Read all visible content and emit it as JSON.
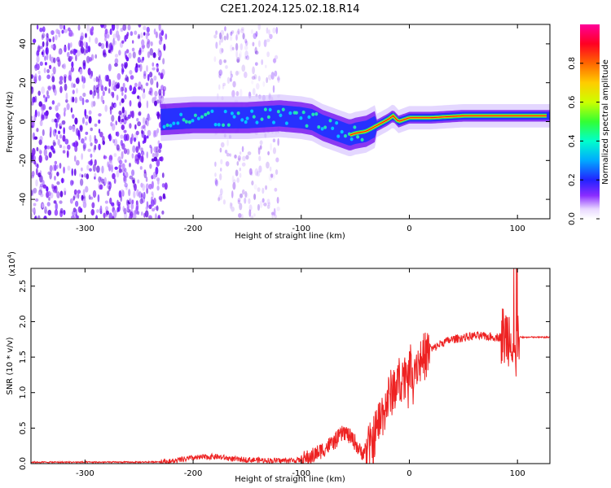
{
  "title": "C2E1.2024.125.02.18.R14",
  "chart_data": [
    {
      "type": "heatmap",
      "xlabel": "Height of straight line (km)",
      "ylabel": "Frequency (Hz)",
      "xlim": [
        -350,
        130
      ],
      "ylim": [
        -50,
        50
      ],
      "xticks": [
        -300,
        -200,
        -100,
        0,
        100
      ],
      "yticks": [
        -40,
        -20,
        0,
        20,
        40
      ],
      "colorbar": {
        "label": "Normalized spectral amplitude",
        "range": [
          0,
          1
        ],
        "ticks": [
          "0.0",
          "0.2",
          "0.4",
          "0.6",
          "0.8"
        ]
      },
      "ridge": {
        "x": [
          -230,
          -200,
          -150,
          -120,
          -100,
          -90,
          -80,
          -70,
          -60,
          -55,
          -50,
          -40,
          -30,
          -20,
          -15,
          -10,
          -5,
          0,
          20,
          50,
          80,
          95,
          100,
          130
        ],
        "y": [
          1,
          2,
          2,
          3,
          2,
          1,
          -2,
          -4,
          -6,
          -7,
          -6,
          -5,
          -2,
          1,
          3,
          0,
          1,
          2,
          2,
          3,
          3,
          3,
          3,
          3
        ]
      },
      "noise_regions": [
        [
          -350,
          -225
        ],
        [
          -180,
          -120
        ]
      ]
    },
    {
      "type": "line",
      "xlabel": "Height of straight line (km)",
      "ylabel": "SNR (10 * v/v)",
      "exponent_label": "(x10",
      "exponent_power": "4",
      "exponent_close": ")",
      "xlim": [
        -350,
        130
      ],
      "ylim": [
        0,
        2.75
      ],
      "xticks": [
        -300,
        -200,
        -100,
        0,
        100
      ],
      "yticks": [
        "0.0",
        "0.5",
        "1.0",
        "1.5",
        "2.0",
        "2.5"
      ],
      "series": [
        {
          "color": "#ee2222",
          "x": [
            -350,
            -300,
            -250,
            -220,
            -200,
            -180,
            -160,
            -140,
            -120,
            -100,
            -90,
            -80,
            -70,
            -60,
            -50,
            -45,
            -40,
            -35,
            -30,
            -25,
            -20,
            -15,
            -10,
            -5,
            0,
            10,
            20,
            30,
            40,
            60,
            80,
            90,
            95,
            98,
            100,
            105,
            130
          ],
          "y": [
            0.02,
            0.02,
            0.02,
            0.03,
            0.08,
            0.1,
            0.06,
            0.05,
            0.04,
            0.05,
            0.1,
            0.2,
            0.3,
            0.45,
            0.3,
            0.15,
            0.2,
            0.25,
            0.5,
            0.7,
            0.9,
            1.05,
            1.15,
            1.25,
            1.35,
            1.45,
            1.6,
            1.7,
            1.75,
            1.8,
            1.78,
            1.8,
            1.85,
            1.4,
            1.78,
            1.78,
            1.78
          ]
        }
      ]
    }
  ],
  "colors": {
    "line": "#ee2222",
    "speckle": "#7711ee"
  }
}
